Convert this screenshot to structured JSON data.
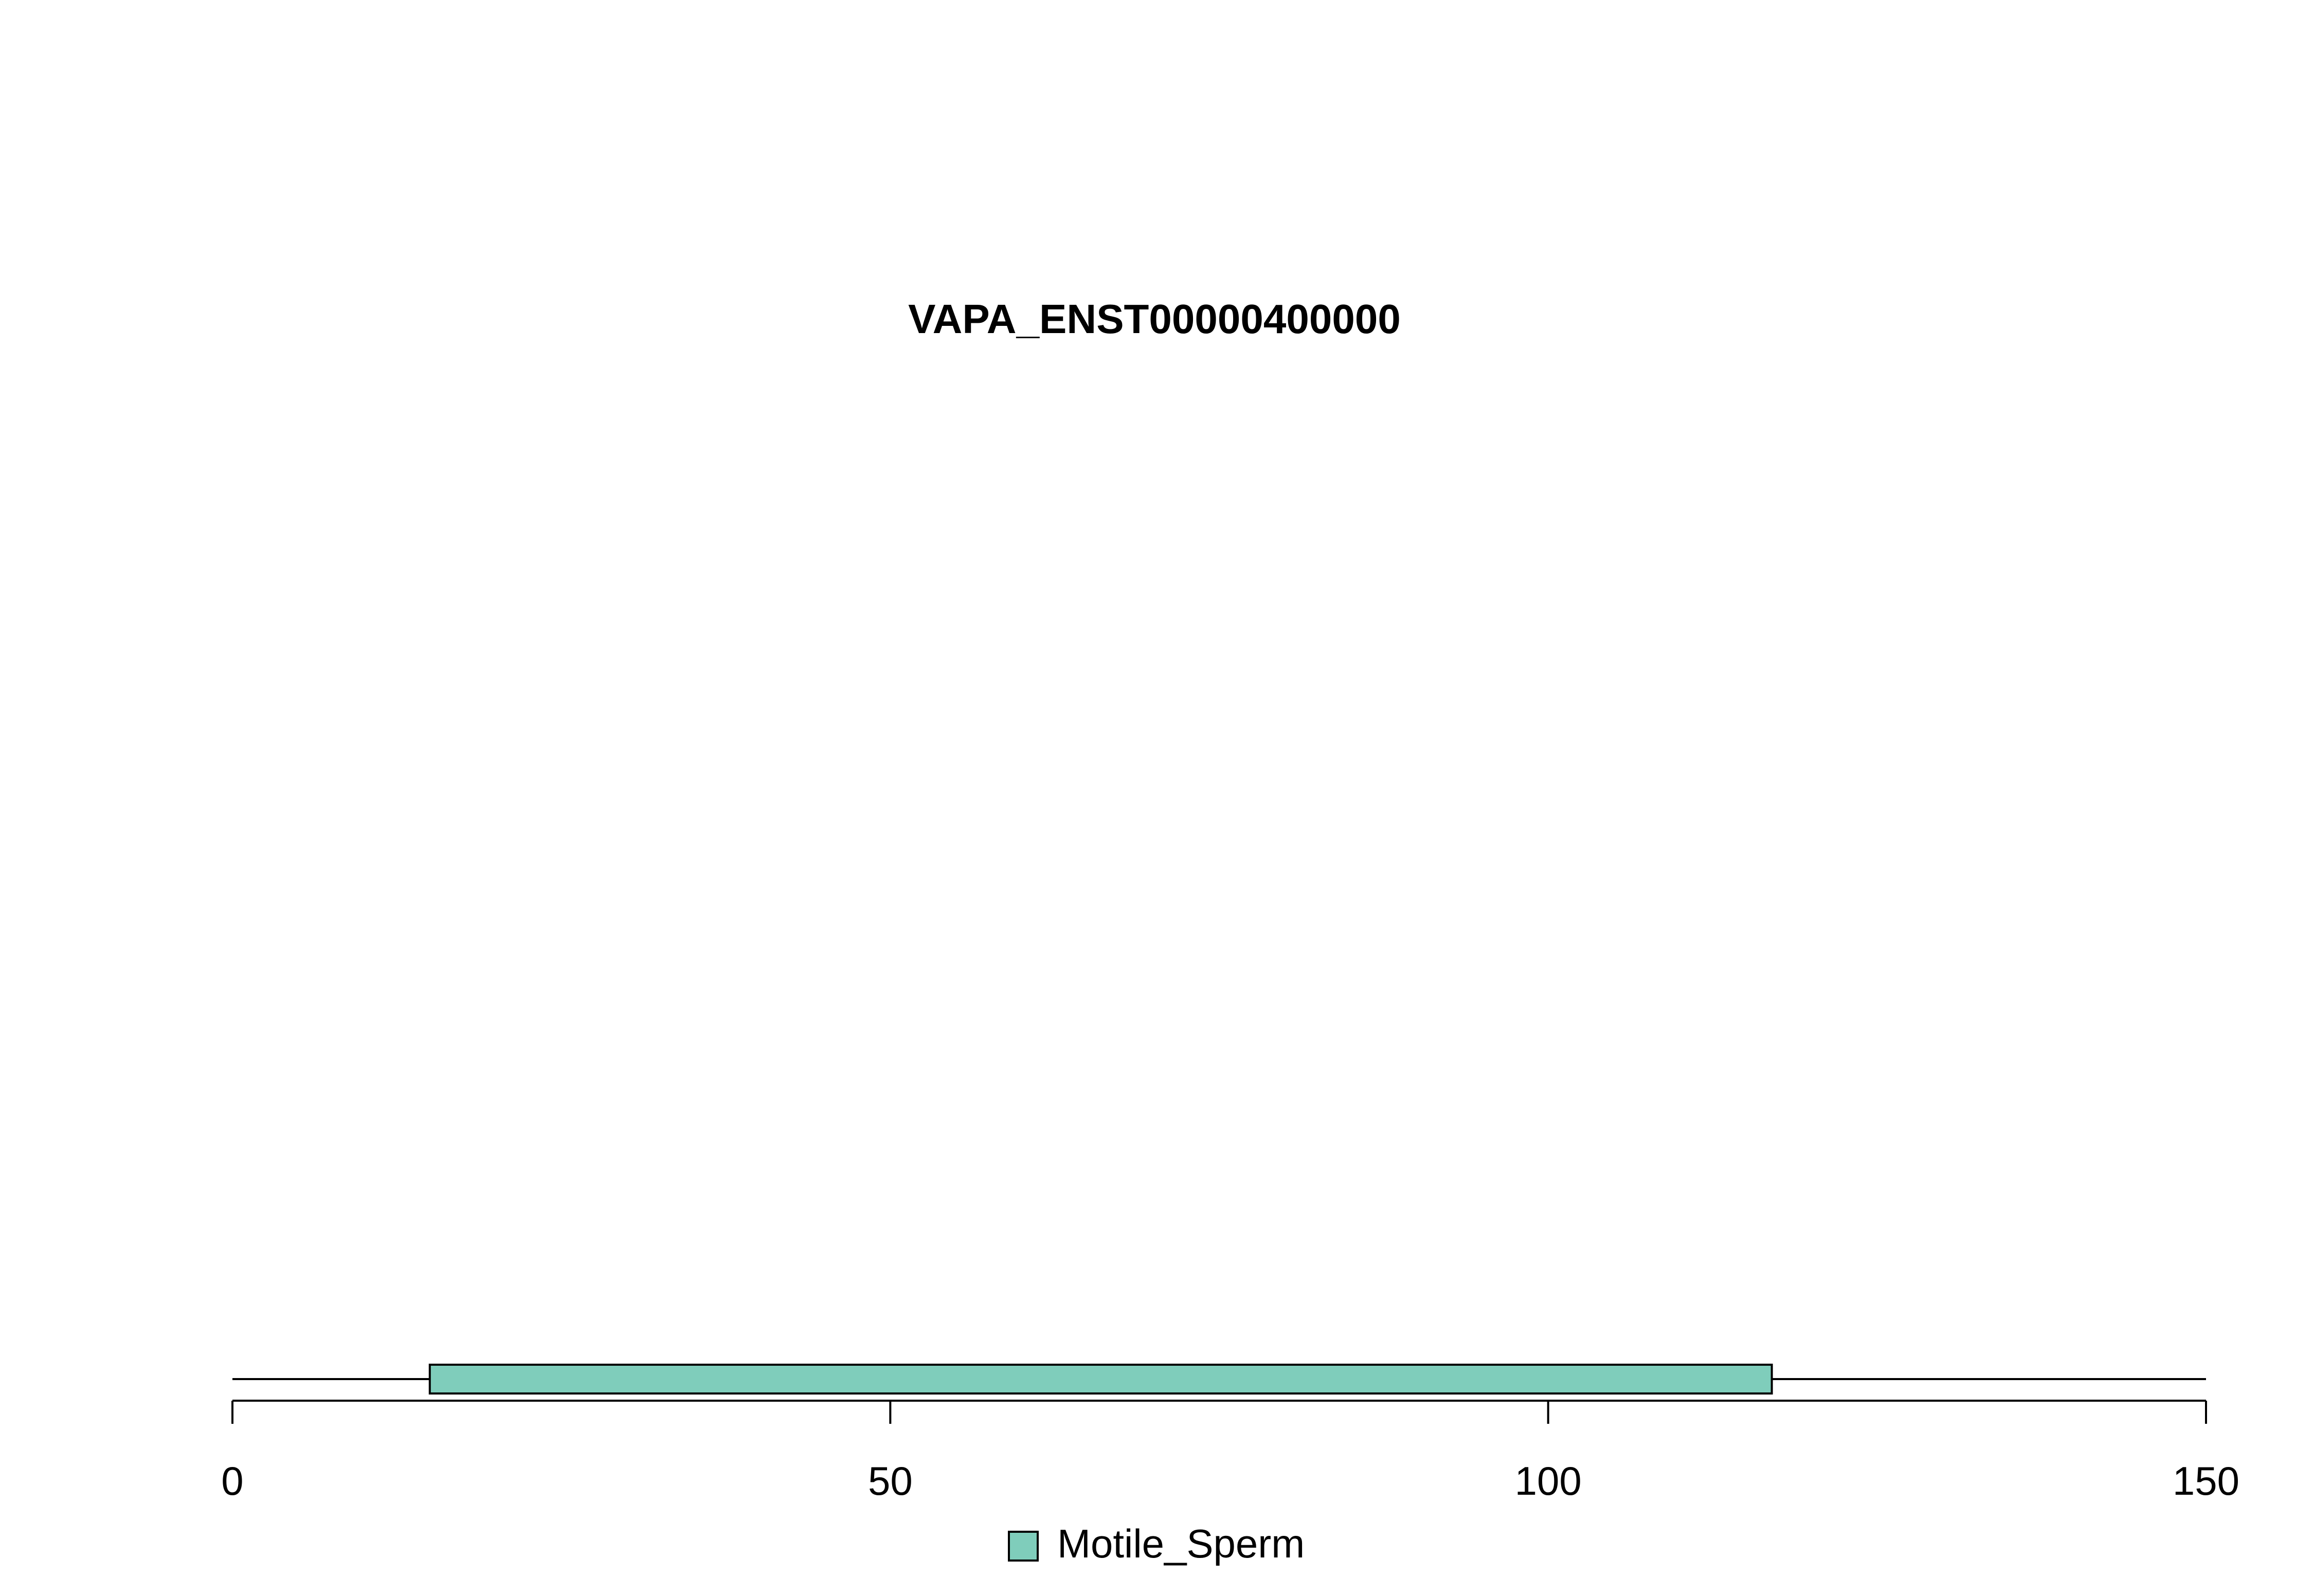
{
  "chart_data": {
    "type": "bar",
    "title": "VAPA_ENST00000400000",
    "xlabel": "",
    "ylabel": "",
    "xlim": [
      0,
      150
    ],
    "x_ticks": [
      0,
      50,
      100,
      150
    ],
    "x_tick_labels": [
      "0",
      "50",
      "100",
      "150"
    ],
    "track": {
      "start": 0,
      "end": 150
    },
    "segments": [
      {
        "series": "Motile_Sperm",
        "start": 15,
        "end": 117
      }
    ],
    "series": [
      {
        "name": "Motile_Sperm",
        "color": "#7fcdbb"
      }
    ],
    "legend": {
      "position": "bottom-center",
      "entries": [
        "Motile_Sperm"
      ]
    },
    "grid": false
  }
}
